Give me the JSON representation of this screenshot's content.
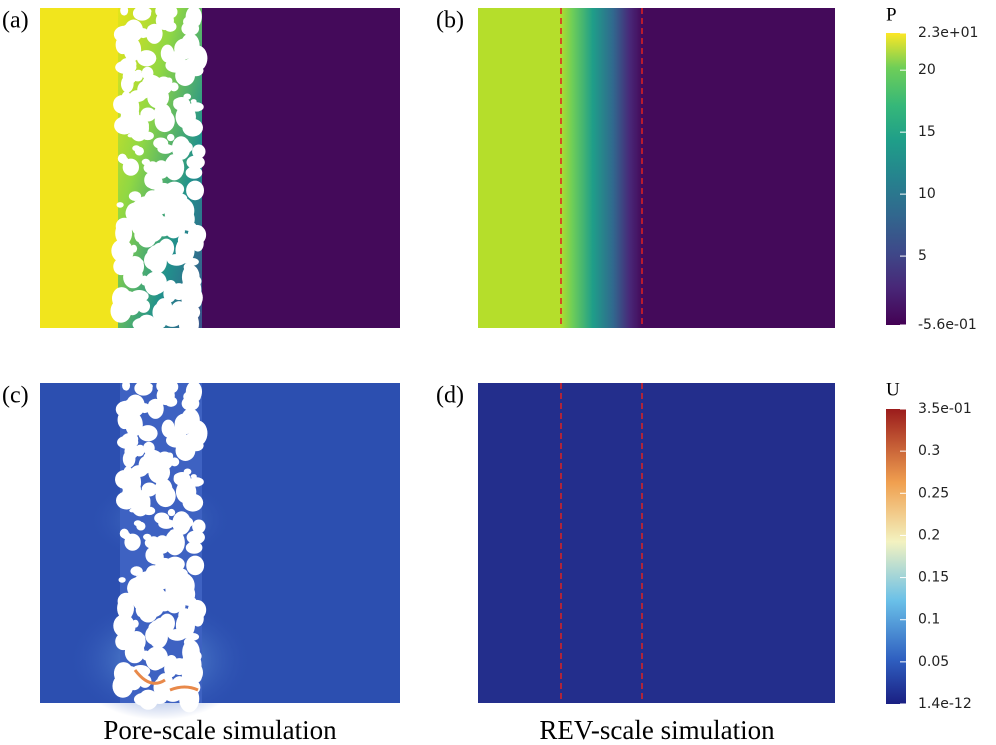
{
  "panels": [
    {
      "label": "(a)"
    },
    {
      "label": "(b)"
    },
    {
      "label": "(c)"
    },
    {
      "label": "(d)"
    }
  ],
  "captions": [
    "Pore-scale simulation",
    "REV-scale simulation"
  ],
  "colorbars": [
    {
      "title": "P",
      "min": {
        "value": -0.56,
        "label": "-5.6e-01"
      },
      "max": {
        "value": 23,
        "label": "2.3e+01"
      },
      "ticks": [
        5,
        10,
        15,
        20
      ]
    },
    {
      "title": "U",
      "min": {
        "value": 1.4e-12,
        "label": "1.4e-12"
      },
      "max": {
        "value": 0.35,
        "label": "3.5e-01"
      },
      "ticks": [
        0.05,
        0.1,
        0.15,
        0.2,
        0.25,
        0.3
      ]
    }
  ]
}
